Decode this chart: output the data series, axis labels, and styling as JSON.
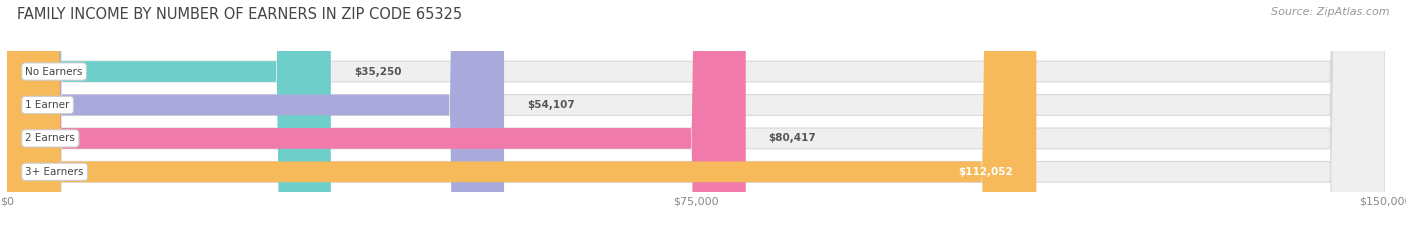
{
  "title": "FAMILY INCOME BY NUMBER OF EARNERS IN ZIP CODE 65325",
  "source": "Source: ZipAtlas.com",
  "categories": [
    "No Earners",
    "1 Earner",
    "2 Earners",
    "3+ Earners"
  ],
  "values": [
    35250,
    54107,
    80417,
    112052
  ],
  "bar_colors": [
    "#6ecfca",
    "#a9aadb",
    "#f07baa",
    "#f6ba5b"
  ],
  "bar_bg_color": "#efefef",
  "xlim": [
    0,
    150000
  ],
  "xticks": [
    0,
    75000,
    150000
  ],
  "xtick_labels": [
    "$0",
    "$75,000",
    "$150,000"
  ],
  "background_color": "#ffffff",
  "title_fontsize": 10.5,
  "source_fontsize": 8,
  "bar_height": 0.62,
  "bar_gap": 1.0
}
